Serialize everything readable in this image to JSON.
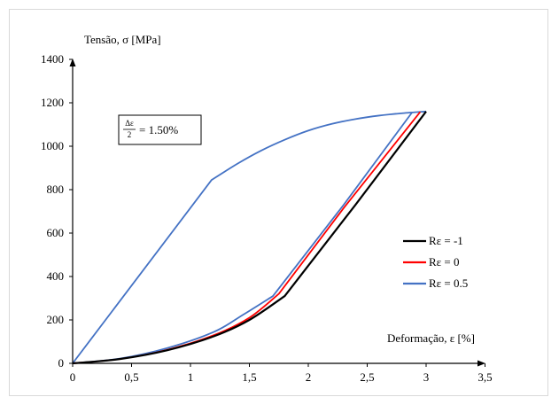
{
  "chart_data": {
    "type": "line",
    "ylabel": "Tensão, σ [MPa]",
    "xlabel": "Deformação,  ε [%]",
    "xlim": [
      0,
      3.5
    ],
    "ylim": [
      0,
      1400
    ],
    "x_ticks": [
      "0",
      "0,5",
      "1",
      "1,5",
      "2",
      "2,5",
      "3",
      "3,5"
    ],
    "y_ticks": [
      "0",
      "200",
      "400",
      "600",
      "800",
      "1000",
      "1200",
      "1400"
    ],
    "grid": false,
    "legend_position": "right",
    "annotation": {
      "numerator": "Δε",
      "denominator": "2",
      "rhs": "= 1.50%"
    },
    "series": [
      {
        "name": "Rε = -1",
        "color": "#000000",
        "x": [
          0,
          0.4,
          0.8,
          1.2,
          1.5,
          1.8,
          2.4,
          3.0
        ],
        "y": [
          0,
          20,
          60,
          125,
          200,
          310,
          730,
          1160
        ]
      },
      {
        "name": "Rε = 0",
        "color": "#ff0000",
        "x": [
          0,
          0.4,
          0.8,
          1.2,
          1.5,
          1.75,
          2.3,
          2.95
        ],
        "y": [
          0,
          20,
          62,
          130,
          210,
          320,
          715,
          1158
        ]
      },
      {
        "name": "Rε = 0.5",
        "color": "#4472c4",
        "x": [
          0,
          0.4,
          0.8,
          1.2,
          1.45,
          1.7,
          2.3,
          2.88
        ],
        "y": [
          0,
          22,
          70,
          145,
          225,
          310,
          730,
          1155
        ]
      },
      {
        "name": "",
        "color": "#4472c4",
        "x": [
          0,
          1.18,
          1.4,
          1.6,
          1.8,
          2.0,
          2.2,
          2.4,
          2.6,
          2.8,
          3.0
        ],
        "y": [
          0,
          845,
          920,
          980,
          1030,
          1072,
          1103,
          1125,
          1141,
          1152,
          1160
        ]
      }
    ]
  }
}
